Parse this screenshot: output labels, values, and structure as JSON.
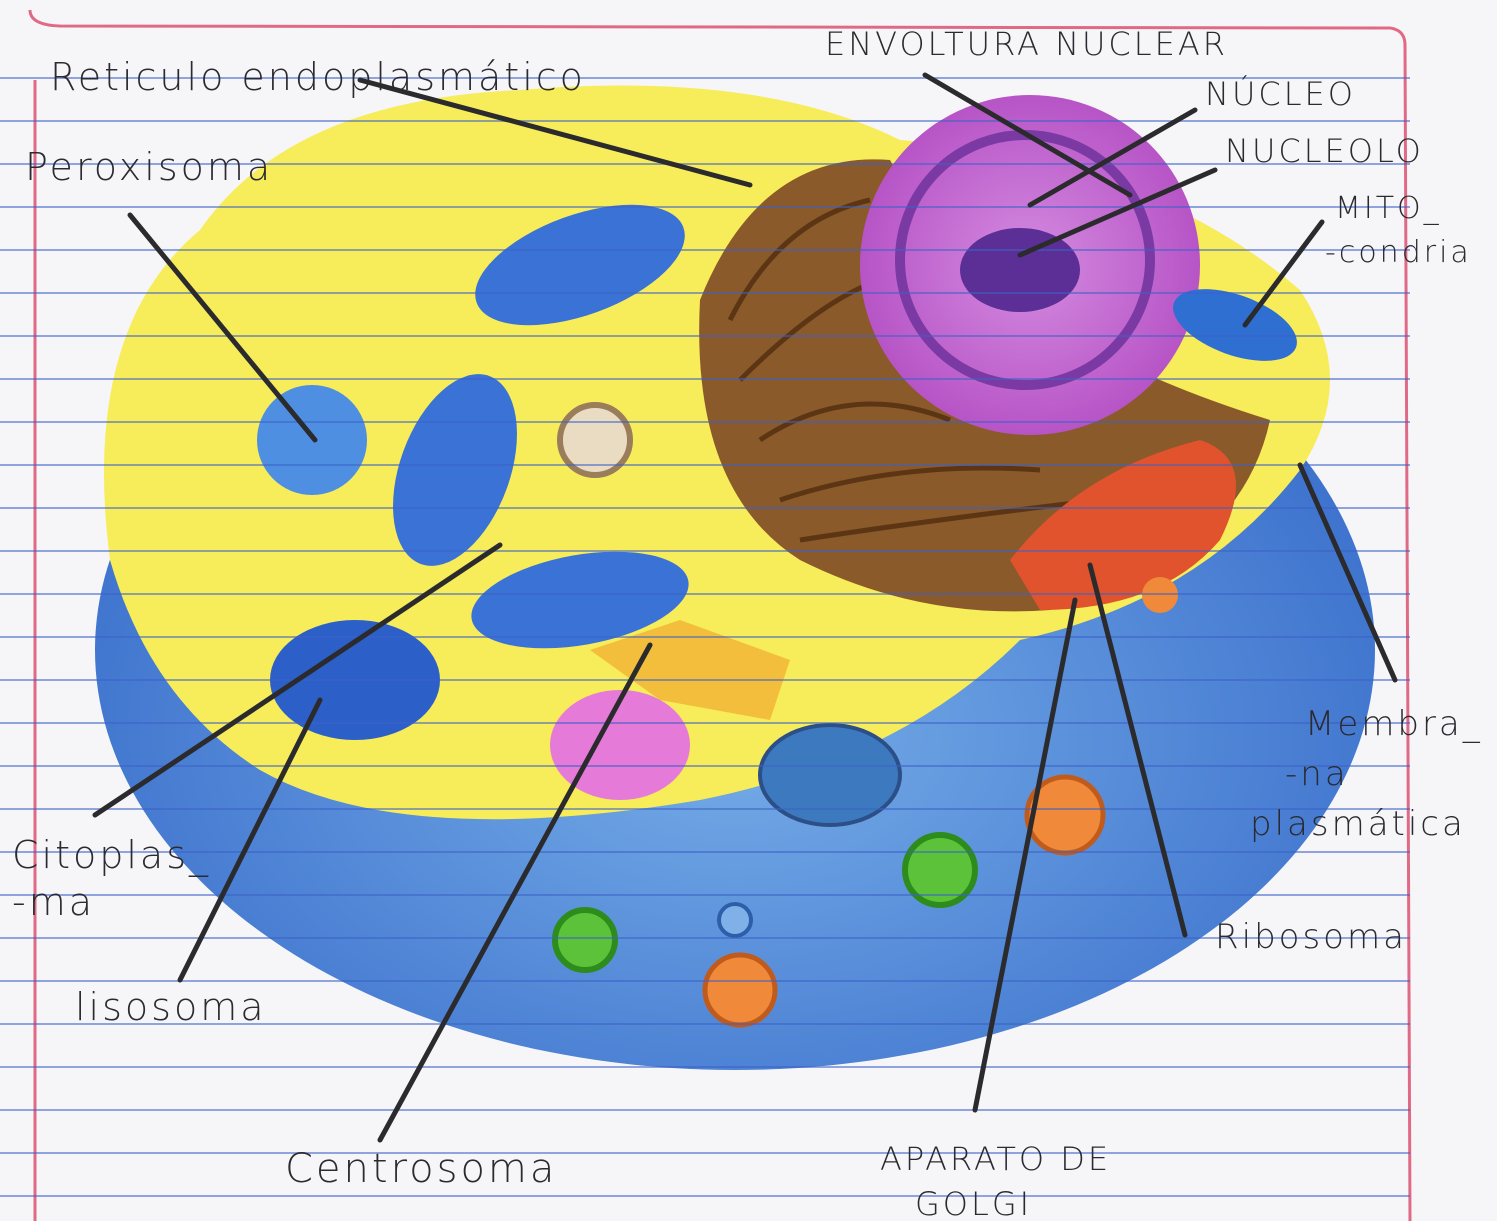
{
  "labels": [
    {
      "lines": [
        "Reticulo endoplasmático"
      ]
    },
    {
      "lines": [
        "ENVOLTURA NUCLEAR"
      ]
    },
    {
      "lines": [
        "NÚCLEO"
      ]
    },
    {
      "lines": [
        "NUCLEOLO"
      ]
    },
    {
      "lines": [
        "MITO_",
        "-condria"
      ]
    },
    {
      "lines": [
        "Peroxisoma"
      ]
    },
    {
      "lines": [
        "Citoplas_",
        "-ma"
      ]
    },
    {
      "lines": [
        "lisosoma"
      ]
    },
    {
      "lines": [
        "Membra_",
        "-na",
        "plasmática"
      ]
    },
    {
      "lines": [
        "Ribosoma"
      ]
    },
    {
      "lines": [
        "Centrosoma"
      ]
    },
    {
      "lines": [
        "APARATO DE",
        "GOLGI"
      ]
    }
  ]
}
